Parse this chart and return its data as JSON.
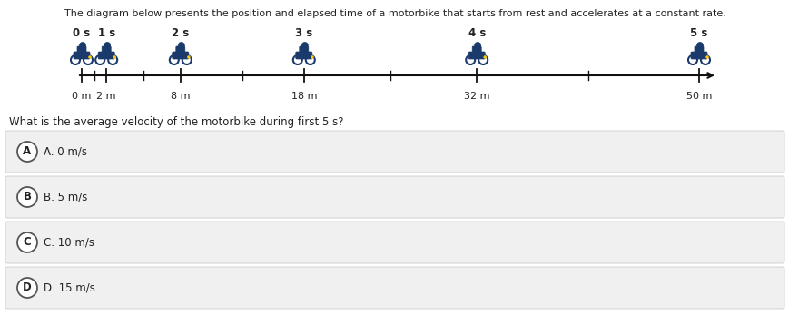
{
  "title": "The diagram below presents the position and elapsed time of a motorbike that starts from rest and accelerates at a constant rate.",
  "question": "What is the average velocity of the motorbike during first 5 s?",
  "timeline": {
    "positions_m": [
      0,
      2,
      8,
      18,
      32,
      50
    ],
    "times_s": [
      0,
      1,
      2,
      3,
      4,
      5
    ],
    "labels_top": [
      "0 s",
      "1 s",
      "2 s",
      "3 s",
      "4 s",
      "5 s"
    ],
    "labels_bottom": [
      "0 m",
      "2 m",
      "8 m",
      "18 m",
      "32 m",
      "50 m"
    ]
  },
  "choices": [
    {
      "letter": "A",
      "text": "A. 0 m/s"
    },
    {
      "letter": "B",
      "text": "B. 5 m/s"
    },
    {
      "letter": "C",
      "text": "C. 10 m/s"
    },
    {
      "letter": "D",
      "text": "D. 15 m/s"
    }
  ],
  "bg_color": "#ffffff",
  "choice_bg_color": "#f0f0f0",
  "choice_border_color": "#cccccc",
  "text_color": "#222222",
  "title_fontsize": 8.0,
  "question_fontsize": 8.5,
  "choice_fontsize": 8.5,
  "axis_line_color": "#111111",
  "tick_color": "#111111",
  "label_fontsize": 8.0,
  "time_label_fontsize": 8.5,
  "ellipsis_text": "..."
}
